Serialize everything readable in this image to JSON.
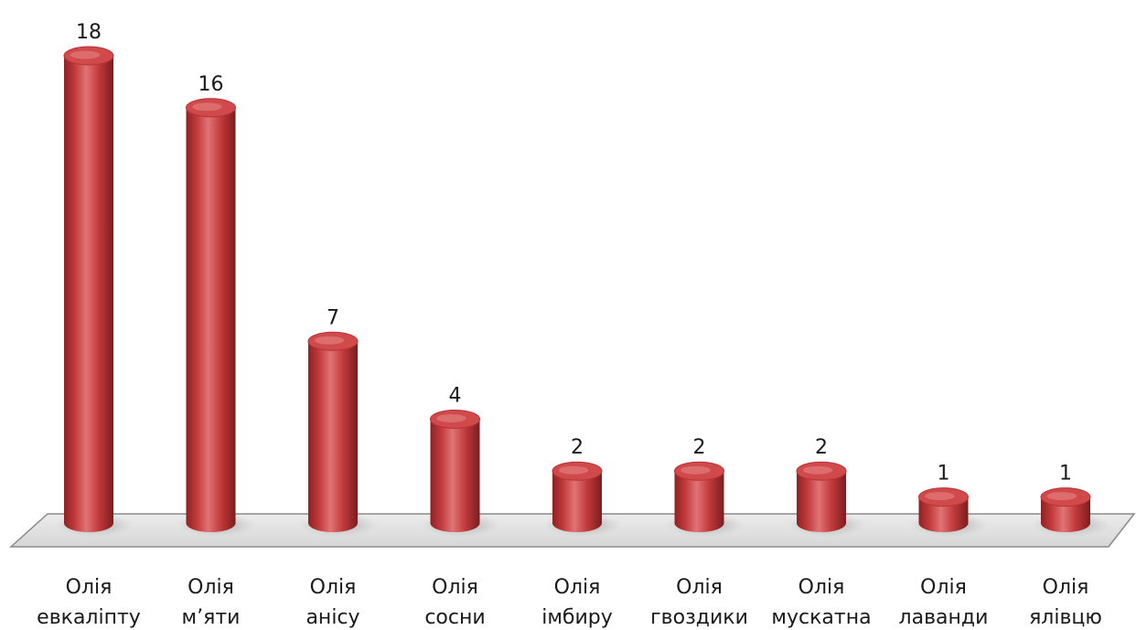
{
  "chart_data": {
    "type": "bar",
    "style": "3d-cylinder",
    "categories": [
      [
        "Олія",
        "евкаліпту"
      ],
      [
        "Олія",
        "м’яти"
      ],
      [
        "Олія",
        "анісу"
      ],
      [
        "Олія",
        "сосни"
      ],
      [
        "Олія",
        "імбиру"
      ],
      [
        "Олія",
        "гвоздики"
      ],
      [
        "Олія",
        "мускатна"
      ],
      [
        "Олія",
        "лаванди"
      ],
      [
        "Олія",
        "ялівцю"
      ]
    ],
    "values": [
      18,
      16,
      7,
      4,
      2,
      2,
      2,
      1,
      1
    ],
    "value_labels": [
      "18",
      "16",
      "7",
      "4",
      "2",
      "2",
      "2",
      "1",
      "1"
    ],
    "bar_color": "#c9393b",
    "ylim": [
      0,
      18
    ],
    "grid": false,
    "legend": "none"
  }
}
